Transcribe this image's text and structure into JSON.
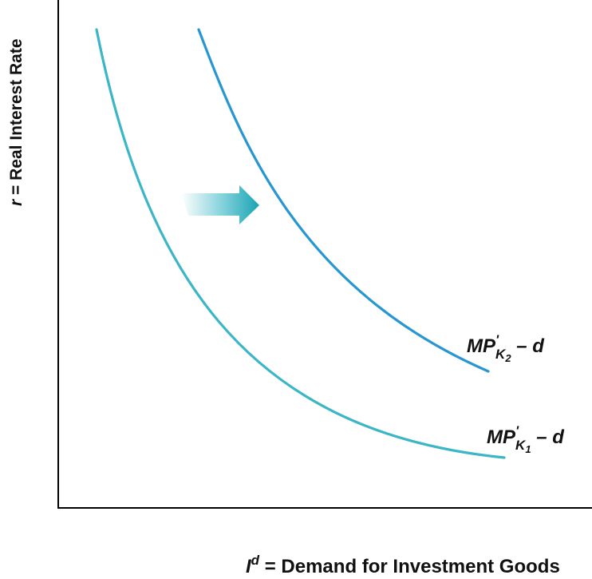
{
  "axes": {
    "y_label": {
      "variable": "r",
      "text": " = Real Interest Rate"
    },
    "x_label": {
      "variable": "I",
      "superscript": "d",
      "text": " = Demand for Investment Goods"
    }
  },
  "curves": [
    {
      "id": "curve-k1",
      "label_main": "MP",
      "label_prime": "'",
      "label_sub_letter": "K",
      "label_sub_digit": "1",
      "label_tail": " – d",
      "color": "#3bb6c6"
    },
    {
      "id": "curve-k2",
      "label_main": "MP",
      "label_prime": "'",
      "label_sub_letter": "K",
      "label_sub_digit": "2",
      "label_tail": " – d",
      "color": "#2796d2"
    }
  ],
  "shift_arrow": {
    "direction": "right",
    "color": "#1aa3b3"
  },
  "colors": {
    "axis": "#000000",
    "text": "#111111"
  }
}
